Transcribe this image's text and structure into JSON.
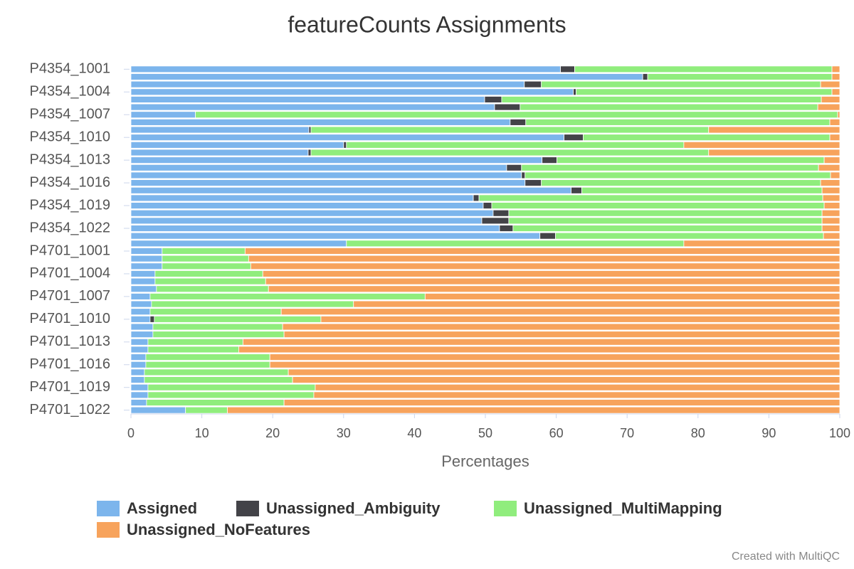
{
  "chart_data": {
    "type": "stacked_barh",
    "title": "featureCounts Assignments",
    "xlabel": "Percentages",
    "credit": "Created with MultiQC",
    "categories": [
      "P4354_1001",
      null,
      null,
      "P4354_1004",
      null,
      null,
      "P4354_1007",
      null,
      null,
      "P4354_1010",
      null,
      null,
      "P4354_1013",
      null,
      null,
      "P4354_1016",
      null,
      null,
      "P4354_1019",
      null,
      null,
      "P4354_1022",
      null,
      null,
      "P4701_1001",
      null,
      null,
      "P4701_1004",
      null,
      null,
      "P4701_1007",
      null,
      null,
      "P4701_1010",
      null,
      null,
      "P4701_1013",
      null,
      null,
      "P4701_1016",
      null,
      null,
      "P4701_1019",
      null,
      null,
      "P4701_1022"
    ],
    "series": [
      {
        "name": "Assigned",
        "color": "#7cb5ec",
        "values": [
          60.6,
          72.2,
          55.5,
          62.4,
          49.9,
          51.3,
          9.1,
          53.5,
          25.1,
          61.1,
          30.0,
          25.0,
          58.0,
          53.0,
          55.1,
          55.6,
          62.1,
          48.3,
          49.7,
          51.1,
          49.5,
          52.0,
          57.7,
          30.4,
          4.4,
          4.4,
          4.4,
          3.4,
          3.4,
          3.6,
          2.7,
          2.9,
          2.7,
          2.7,
          3.1,
          3.1,
          2.4,
          2.4,
          2.1,
          2.1,
          1.9,
          1.9,
          2.4,
          2.4,
          2.2,
          7.7
        ]
      },
      {
        "name": "Unassigned_Ambiguity",
        "color": "#434348",
        "values": [
          2.0,
          0.7,
          2.4,
          0.4,
          2.4,
          3.6,
          0,
          2.2,
          0.3,
          2.7,
          0.4,
          0.4,
          2.1,
          2.1,
          0.5,
          2.3,
          1.5,
          0.8,
          1.2,
          2.2,
          3.8,
          1.9,
          2.2,
          0,
          0,
          0,
          0,
          0,
          0,
          0,
          0,
          0,
          0,
          0.6,
          0,
          0,
          0,
          0,
          0,
          0,
          0,
          0,
          0,
          0,
          0,
          0
        ]
      },
      {
        "name": "Unassigned_MultiMapping",
        "color": "#90ed7d",
        "values": [
          36.3,
          26.0,
          39.4,
          36.1,
          45.1,
          42.0,
          90.6,
          42.9,
          56.1,
          34.8,
          47.6,
          56.1,
          37.7,
          41.9,
          43.1,
          39.4,
          33.9,
          48.5,
          46.9,
          44.2,
          44.2,
          43.6,
          37.8,
          47.6,
          11.7,
          12.2,
          12.5,
          15.2,
          15.6,
          15.8,
          38.8,
          28.5,
          18.5,
          23.5,
          18.3,
          18.5,
          13.4,
          12.8,
          17.5,
          17.5,
          20.3,
          20.9,
          23.6,
          23.4,
          19.4,
          5.9
        ]
      },
      {
        "name": "Unassigned_NoFeatures",
        "color": "#f7a35c",
        "values": [
          1.1,
          1.1,
          2.7,
          1.1,
          2.6,
          3.1,
          0.3,
          1.4,
          18.5,
          1.4,
          22.0,
          18.5,
          2.2,
          3.0,
          1.3,
          2.7,
          2.5,
          2.4,
          2.2,
          2.5,
          2.5,
          2.5,
          2.3,
          22.0,
          83.9,
          83.4,
          83.1,
          81.4,
          81.0,
          80.6,
          58.5,
          68.6,
          78.8,
          73.2,
          78.6,
          78.4,
          84.2,
          84.8,
          80.4,
          80.4,
          77.8,
          77.2,
          74.0,
          74.2,
          78.4,
          86.4
        ]
      }
    ],
    "xlim": [
      0,
      100
    ],
    "xticks": [
      0,
      10,
      20,
      30,
      40,
      50,
      60,
      70,
      80,
      90,
      100
    ],
    "grid": false,
    "legend": "bottom"
  }
}
